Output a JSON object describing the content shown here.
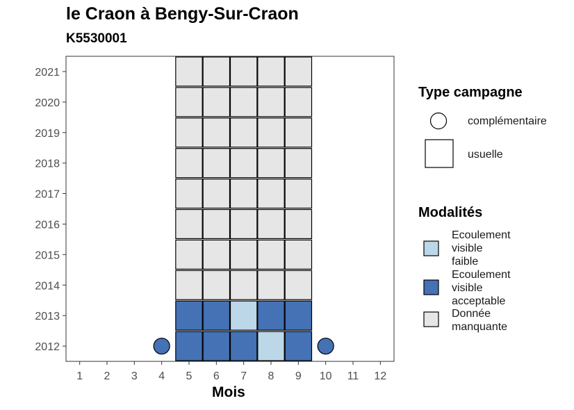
{
  "chart_data": {
    "type": "heatmap",
    "title": "le Craon à Bengy-Sur-Craon",
    "subtitle": "K5530001",
    "xlabel": "Mois",
    "ylabel": "",
    "x_ticks": [
      1,
      2,
      3,
      4,
      5,
      6,
      7,
      8,
      9,
      10,
      11,
      12
    ],
    "y_ticks": [
      2012,
      2013,
      2014,
      2015,
      2016,
      2017,
      2018,
      2019,
      2020,
      2021
    ],
    "xlim": [
      0.5,
      12.5
    ],
    "ylim": [
      2011.5,
      2021.5
    ],
    "colors": {
      "Ecoulement visible faible": "#bcd7e8",
      "Ecoulement visible acceptable": "#4472b5",
      "Donnée manquante": "#e6e6e6"
    },
    "points": [
      {
        "year": 2012,
        "month": 4,
        "modalite": "Ecoulement visible acceptable",
        "campagne": "complémentaire"
      },
      {
        "year": 2012,
        "month": 5,
        "modalite": "Ecoulement visible acceptable",
        "campagne": "usuelle"
      },
      {
        "year": 2012,
        "month": 6,
        "modalite": "Ecoulement visible acceptable",
        "campagne": "usuelle"
      },
      {
        "year": 2012,
        "month": 7,
        "modalite": "Ecoulement visible acceptable",
        "campagne": "usuelle"
      },
      {
        "year": 2012,
        "month": 8,
        "modalite": "Ecoulement visible faible",
        "campagne": "usuelle"
      },
      {
        "year": 2012,
        "month": 9,
        "modalite": "Ecoulement visible acceptable",
        "campagne": "usuelle"
      },
      {
        "year": 2012,
        "month": 10,
        "modalite": "Ecoulement visible acceptable",
        "campagne": "complémentaire"
      },
      {
        "year": 2013,
        "month": 5,
        "modalite": "Ecoulement visible acceptable",
        "campagne": "usuelle"
      },
      {
        "year": 2013,
        "month": 6,
        "modalite": "Ecoulement visible acceptable",
        "campagne": "usuelle"
      },
      {
        "year": 2013,
        "month": 7,
        "modalite": "Ecoulement visible faible",
        "campagne": "usuelle"
      },
      {
        "year": 2013,
        "month": 8,
        "modalite": "Ecoulement visible acceptable",
        "campagne": "usuelle"
      },
      {
        "year": 2013,
        "month": 9,
        "modalite": "Ecoulement visible acceptable",
        "campagne": "usuelle"
      },
      {
        "year": 2014,
        "month": 5,
        "modalite": "Donnée manquante",
        "campagne": "usuelle"
      },
      {
        "year": 2014,
        "month": 6,
        "modalite": "Donnée manquante",
        "campagne": "usuelle"
      },
      {
        "year": 2014,
        "month": 7,
        "modalite": "Donnée manquante",
        "campagne": "usuelle"
      },
      {
        "year": 2014,
        "month": 8,
        "modalite": "Donnée manquante",
        "campagne": "usuelle"
      },
      {
        "year": 2014,
        "month": 9,
        "modalite": "Donnée manquante",
        "campagne": "usuelle"
      },
      {
        "year": 2015,
        "month": 5,
        "modalite": "Donnée manquante",
        "campagne": "usuelle"
      },
      {
        "year": 2015,
        "month": 6,
        "modalite": "Donnée manquante",
        "campagne": "usuelle"
      },
      {
        "year": 2015,
        "month": 7,
        "modalite": "Donnée manquante",
        "campagne": "usuelle"
      },
      {
        "year": 2015,
        "month": 8,
        "modalite": "Donnée manquante",
        "campagne": "usuelle"
      },
      {
        "year": 2015,
        "month": 9,
        "modalite": "Donnée manquante",
        "campagne": "usuelle"
      },
      {
        "year": 2016,
        "month": 5,
        "modalite": "Donnée manquante",
        "campagne": "usuelle"
      },
      {
        "year": 2016,
        "month": 6,
        "modalite": "Donnée manquante",
        "campagne": "usuelle"
      },
      {
        "year": 2016,
        "month": 7,
        "modalite": "Donnée manquante",
        "campagne": "usuelle"
      },
      {
        "year": 2016,
        "month": 8,
        "modalite": "Donnée manquante",
        "campagne": "usuelle"
      },
      {
        "year": 2016,
        "month": 9,
        "modalite": "Donnée manquante",
        "campagne": "usuelle"
      },
      {
        "year": 2017,
        "month": 5,
        "modalite": "Donnée manquante",
        "campagne": "usuelle"
      },
      {
        "year": 2017,
        "month": 6,
        "modalite": "Donnée manquante",
        "campagne": "usuelle"
      },
      {
        "year": 2017,
        "month": 7,
        "modalite": "Donnée manquante",
        "campagne": "usuelle"
      },
      {
        "year": 2017,
        "month": 8,
        "modalite": "Donnée manquante",
        "campagne": "usuelle"
      },
      {
        "year": 2017,
        "month": 9,
        "modalite": "Donnée manquante",
        "campagne": "usuelle"
      },
      {
        "year": 2018,
        "month": 5,
        "modalite": "Donnée manquante",
        "campagne": "usuelle"
      },
      {
        "year": 2018,
        "month": 6,
        "modalite": "Donnée manquante",
        "campagne": "usuelle"
      },
      {
        "year": 2018,
        "month": 7,
        "modalite": "Donnée manquante",
        "campagne": "usuelle"
      },
      {
        "year": 2018,
        "month": 8,
        "modalite": "Donnée manquante",
        "campagne": "usuelle"
      },
      {
        "year": 2018,
        "month": 9,
        "modalite": "Donnée manquante",
        "campagne": "usuelle"
      },
      {
        "year": 2019,
        "month": 5,
        "modalite": "Donnée manquante",
        "campagne": "usuelle"
      },
      {
        "year": 2019,
        "month": 6,
        "modalite": "Donnée manquante",
        "campagne": "usuelle"
      },
      {
        "year": 2019,
        "month": 7,
        "modalite": "Donnée manquante",
        "campagne": "usuelle"
      },
      {
        "year": 2019,
        "month": 8,
        "modalite": "Donnée manquante",
        "campagne": "usuelle"
      },
      {
        "year": 2019,
        "month": 9,
        "modalite": "Donnée manquante",
        "campagne": "usuelle"
      },
      {
        "year": 2020,
        "month": 5,
        "modalite": "Donnée manquante",
        "campagne": "usuelle"
      },
      {
        "year": 2020,
        "month": 6,
        "modalite": "Donnée manquante",
        "campagne": "usuelle"
      },
      {
        "year": 2020,
        "month": 7,
        "modalite": "Donnée manquante",
        "campagne": "usuelle"
      },
      {
        "year": 2020,
        "month": 8,
        "modalite": "Donnée manquante",
        "campagne": "usuelle"
      },
      {
        "year": 2020,
        "month": 9,
        "modalite": "Donnée manquante",
        "campagne": "usuelle"
      },
      {
        "year": 2021,
        "month": 5,
        "modalite": "Donnée manquante",
        "campagne": "usuelle"
      },
      {
        "year": 2021,
        "month": 6,
        "modalite": "Donnée manquante",
        "campagne": "usuelle"
      },
      {
        "year": 2021,
        "month": 7,
        "modalite": "Donnée manquante",
        "campagne": "usuelle"
      },
      {
        "year": 2021,
        "month": 8,
        "modalite": "Donnée manquante",
        "campagne": "usuelle"
      },
      {
        "year": 2021,
        "month": 9,
        "modalite": "Donnée manquante",
        "campagne": "usuelle"
      }
    ],
    "grid": false,
    "legend_position": "right",
    "legend": {
      "shape_title": "Type campagne",
      "shape_items": [
        "complémentaire",
        "usuelle"
      ],
      "fill_title": "Modalités",
      "fill_items": [
        [
          "Ecoulement",
          "visible",
          "faible"
        ],
        [
          "Ecoulement",
          "visible",
          "acceptable"
        ],
        [
          "Donnée",
          "manquante"
        ]
      ]
    }
  }
}
